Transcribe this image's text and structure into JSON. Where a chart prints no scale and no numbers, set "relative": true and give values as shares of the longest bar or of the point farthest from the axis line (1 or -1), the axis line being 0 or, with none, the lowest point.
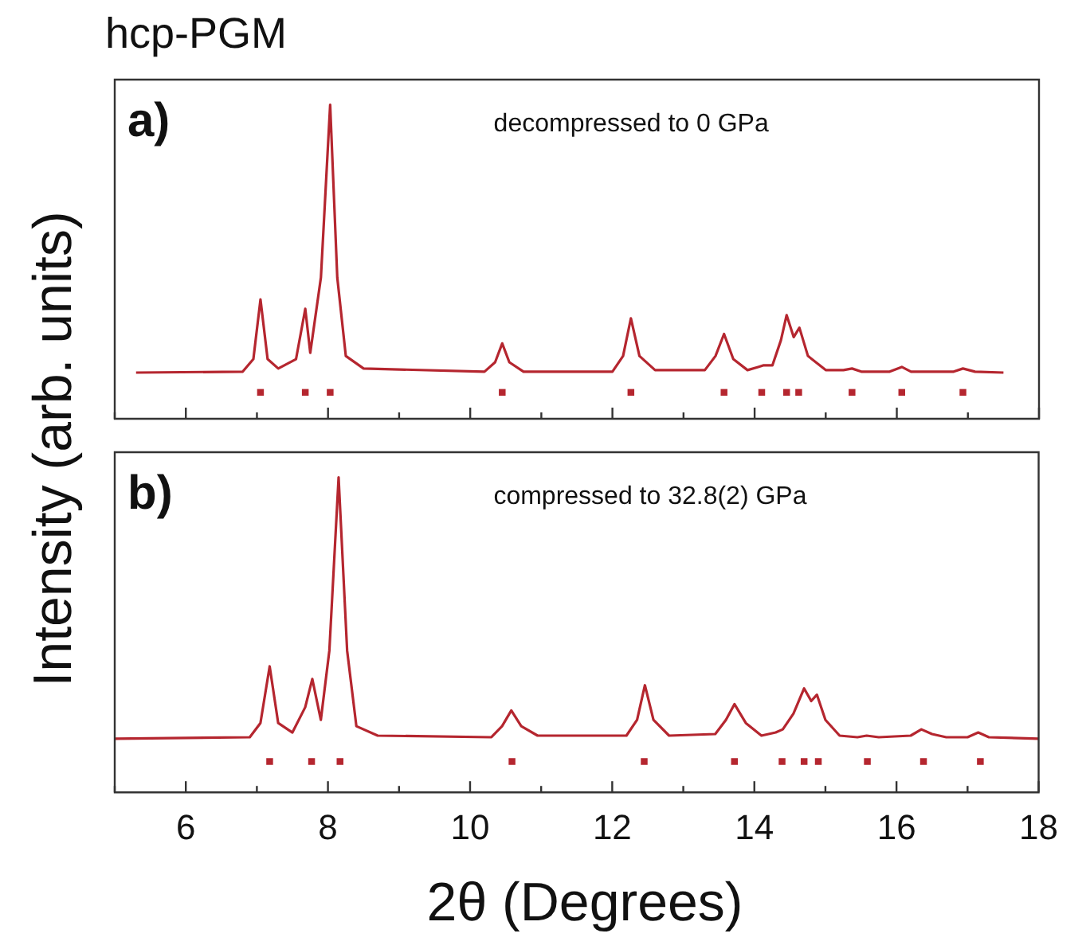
{
  "chart_data": [
    {
      "type": "line",
      "title": "hcp-PGM",
      "ylabel": "Intensity (arb. units)",
      "relative": true,
      "xlim": [
        5,
        18
      ],
      "xticks": [
        {
          "value": 5,
          "label": null
        },
        6,
        {
          "value": 7,
          "label": null
        },
        8,
        {
          "value": 9,
          "label": null
        },
        10,
        {
          "value": 11,
          "label": null
        },
        12,
        {
          "value": 13,
          "label": null
        },
        14,
        {
          "value": 15,
          "label": null
        },
        16,
        {
          "value": 17,
          "label": null
        },
        18
      ],
      "tick_labels": false,
      "grid": false,
      "legend": false,
      "marker": "none",
      "annotations": [
        "a)",
        "decompressed to 0 GPa"
      ],
      "series": [
        {
          "type": "line",
          "color": "#b5262f",
          "x": [
            5.3,
            6.8,
            6.95,
            7.05,
            7.15,
            7.3,
            7.55,
            7.68,
            7.75,
            7.9,
            8.03,
            8.13,
            8.25,
            8.5,
            10.2,
            10.35,
            10.45,
            10.55,
            10.75,
            12.0,
            12.15,
            12.26,
            12.38,
            12.6,
            13.3,
            13.45,
            13.57,
            13.7,
            13.9,
            14.05,
            14.12,
            14.25,
            14.37,
            14.45,
            14.55,
            14.63,
            14.75,
            15.0,
            15.25,
            15.37,
            15.5,
            15.9,
            16.07,
            16.2,
            16.8,
            16.93,
            17.1,
            17.5
          ],
          "values": [
            0.147,
            0.15,
            0.19,
            0.38,
            0.19,
            0.16,
            0.19,
            0.35,
            0.21,
            0.45,
            1.0,
            0.45,
            0.2,
            0.16,
            0.15,
            0.18,
            0.24,
            0.18,
            0.15,
            0.15,
            0.2,
            0.32,
            0.2,
            0.155,
            0.155,
            0.2,
            0.27,
            0.19,
            0.155,
            0.165,
            0.17,
            0.17,
            0.25,
            0.33,
            0.26,
            0.29,
            0.2,
            0.155,
            0.155,
            0.16,
            0.15,
            0.15,
            0.165,
            0.15,
            0.15,
            0.16,
            0.15,
            0.147
          ]
        },
        {
          "type": "scatter",
          "color": "#b5262f",
          "marker": "square",
          "x": [
            7.05,
            7.68,
            8.03,
            10.45,
            12.26,
            13.57,
            14.1,
            14.45,
            14.62,
            15.37,
            16.07,
            16.93
          ],
          "values": [
            0.084,
            0.084,
            0.084,
            0.084,
            0.084,
            0.084,
            0.084,
            0.084,
            0.084,
            0.084,
            0.084,
            0.084
          ]
        }
      ]
    },
    {
      "type": "line",
      "xlabel": "2θ (Degrees)",
      "relative": true,
      "xlim": [
        5,
        18
      ],
      "xticks": [
        {
          "value": 5,
          "label": null
        },
        6,
        {
          "value": 7,
          "label": null
        },
        8,
        {
          "value": 9,
          "label": null
        },
        10,
        {
          "value": 11,
          "label": null
        },
        12,
        {
          "value": 13,
          "label": null
        },
        14,
        {
          "value": 15,
          "label": null
        },
        16,
        {
          "value": 17,
          "label": null
        },
        18
      ],
      "tick_labels": "x",
      "grid": false,
      "legend": false,
      "marker": "none",
      "annotations": [
        "b)",
        "compressed to 32.8(2) GPa"
      ],
      "series": [
        {
          "type": "line",
          "color": "#b5262f",
          "x": [
            5.0,
            6.9,
            7.05,
            7.18,
            7.3,
            7.5,
            7.68,
            7.78,
            7.9,
            8.02,
            8.15,
            8.27,
            8.4,
            8.7,
            10.3,
            10.45,
            10.58,
            10.72,
            10.95,
            12.2,
            12.35,
            12.46,
            12.58,
            12.8,
            13.45,
            13.6,
            13.72,
            13.88,
            14.1,
            14.3,
            14.4,
            14.55,
            14.7,
            14.8,
            14.88,
            15.0,
            15.2,
            15.45,
            15.58,
            15.75,
            16.2,
            16.35,
            16.5,
            16.7,
            17.0,
            17.15,
            17.3,
            18.0
          ],
          "values": [
            0.17,
            0.175,
            0.22,
            0.4,
            0.22,
            0.19,
            0.27,
            0.36,
            0.23,
            0.45,
            1.0,
            0.45,
            0.21,
            0.18,
            0.175,
            0.21,
            0.26,
            0.21,
            0.18,
            0.18,
            0.23,
            0.34,
            0.23,
            0.18,
            0.185,
            0.23,
            0.28,
            0.22,
            0.18,
            0.19,
            0.2,
            0.25,
            0.33,
            0.29,
            0.31,
            0.23,
            0.18,
            0.175,
            0.18,
            0.175,
            0.18,
            0.2,
            0.185,
            0.175,
            0.175,
            0.19,
            0.175,
            0.17
          ]
        },
        {
          "type": "scatter",
          "color": "#b5262f",
          "marker": "square",
          "x": [
            7.18,
            7.77,
            8.17,
            10.59,
            12.45,
            13.72,
            14.39,
            14.7,
            14.9,
            15.59,
            16.38,
            17.18
          ],
          "values": [
            0.098,
            0.098,
            0.098,
            0.098,
            0.098,
            0.098,
            0.098,
            0.098,
            0.098,
            0.098,
            0.098,
            0.098
          ]
        }
      ]
    }
  ]
}
